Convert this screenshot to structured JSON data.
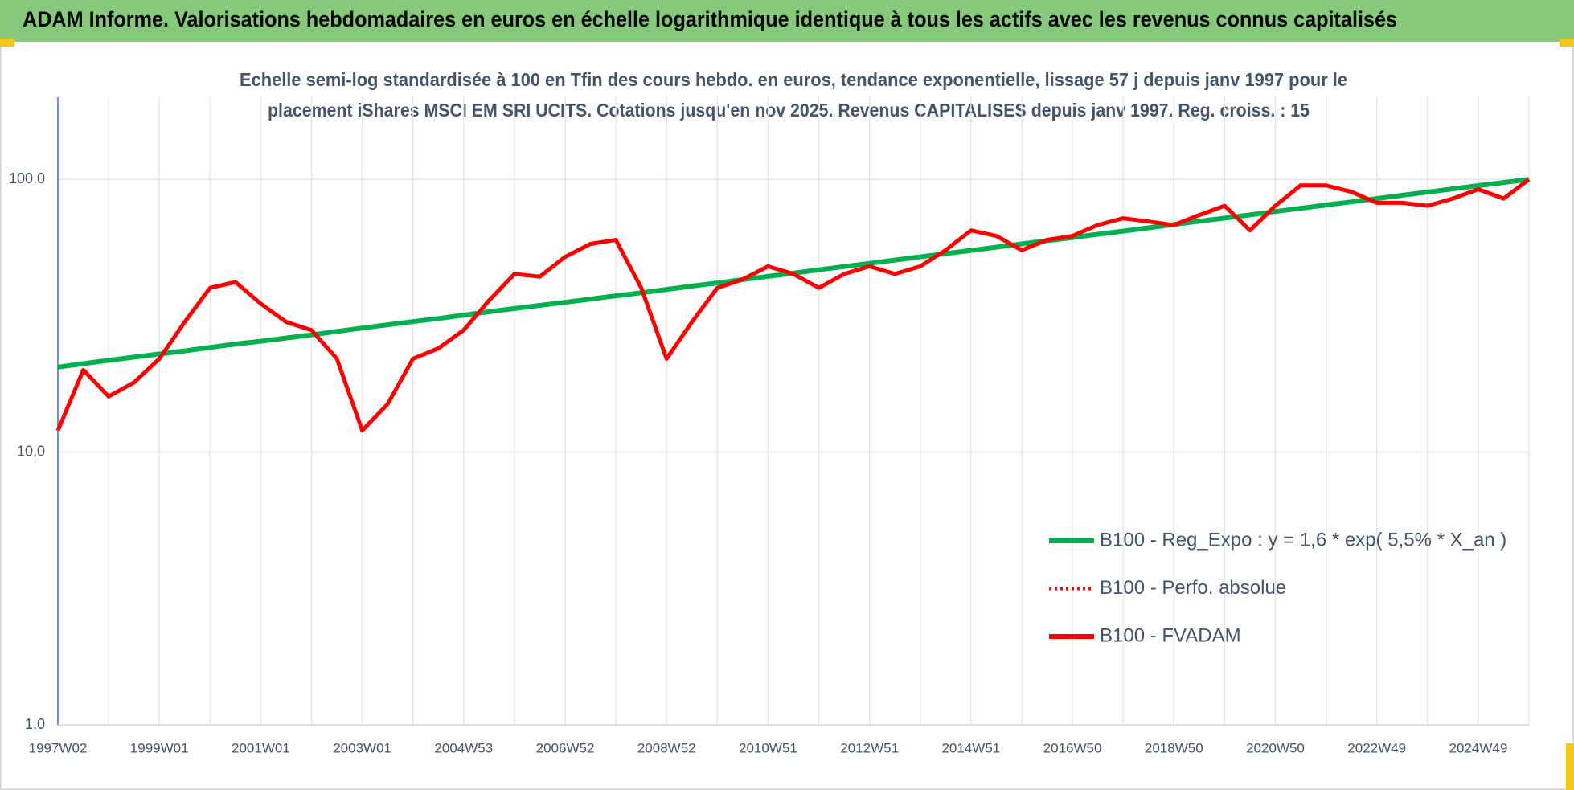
{
  "header": {
    "title": "ADAM Informe. Valorisations hebdomadaires en euros en échelle logarithmique identique à tous les actifs avec les revenus connus capitalisés"
  },
  "chart_data": {
    "type": "line",
    "title": [
      "Echelle semi-log standardisée à 100 en Tfin des cours hebdo. en euros, tendance exponentielle, lissage 57 j depuis janv 1997 pour le",
      "placement iShares MSCI EM SRI UCITS. Cotations jusqu'en nov 2025. Revenus CAPITALISES depuis janv 1997. Reg. croiss. : 15"
    ],
    "categories": [
      "1997W02",
      null,
      null,
      null,
      "1999W01",
      null,
      null,
      null,
      "2001W01",
      null,
      null,
      null,
      "2003W01",
      null,
      null,
      null,
      "2004W53",
      null,
      null,
      null,
      "2006W52",
      null,
      null,
      null,
      "2008W52",
      null,
      null,
      null,
      "2010W51",
      null,
      null,
      null,
      "2012W51",
      null,
      null,
      null,
      "2014W51",
      null,
      null,
      null,
      "2016W50",
      null,
      null,
      null,
      "2018W50",
      null,
      null,
      null,
      "2020W50",
      null,
      null,
      null,
      "2022W49",
      null,
      null,
      null,
      "2024W49",
      null,
      null
    ],
    "series": [
      {
        "name": "B100 - Reg_Expo : y = 1,6 * exp( 5,5% *  X_an )",
        "color": "#00b050",
        "dash": "solid",
        "values": [
          20.5,
          21.1,
          21.7,
          22.3,
          22.9,
          23.5,
          24.2,
          24.9,
          25.5,
          26.2,
          26.9,
          27.7,
          28.5,
          29.3,
          30.1,
          30.9,
          31.8,
          32.7,
          33.6,
          34.5,
          35.4,
          36.4,
          37.4,
          38.4,
          39.5,
          40.6,
          41.7,
          42.9,
          44.1,
          45.3,
          46.6,
          47.9,
          49.2,
          50.6,
          52.0,
          53.4,
          54.9,
          56.4,
          58.0,
          59.6,
          61.2,
          62.9,
          64.6,
          66.4,
          68.3,
          70.2,
          72.1,
          74.1,
          76.2,
          78.3,
          80.5,
          82.7,
          85.0,
          87.4,
          89.8,
          92.3,
          94.8,
          97.4,
          100
        ]
      },
      {
        "name": "B100 - Perfo. absolue",
        "color": "#ff0000",
        "dash": "dotted",
        "values": [
          12,
          20,
          16,
          18,
          22,
          30,
          40,
          42,
          35,
          30,
          28,
          22,
          12,
          15,
          22,
          24,
          28,
          36,
          45,
          44,
          52,
          58,
          60,
          40,
          22,
          30,
          40,
          43,
          48,
          45,
          40,
          45,
          48,
          45,
          48,
          55,
          65,
          62,
          55,
          60,
          62,
          68,
          72,
          70,
          68,
          74,
          80,
          65,
          80,
          95,
          95,
          90,
          82,
          82,
          80,
          85,
          92,
          85,
          100
        ]
      },
      {
        "name": "B100 - FVADAM",
        "color": "#ff0000",
        "dash": "solid",
        "values": [
          12,
          20,
          16,
          18,
          22,
          30,
          40,
          42,
          35,
          30,
          28,
          22,
          12,
          15,
          22,
          24,
          28,
          36,
          45,
          44,
          52,
          58,
          60,
          40,
          22,
          30,
          40,
          43,
          48,
          45,
          40,
          45,
          48,
          45,
          48,
          55,
          65,
          62,
          55,
          60,
          62,
          68,
          72,
          70,
          68,
          74,
          80,
          65,
          80,
          95,
          95,
          90,
          82,
          82,
          80,
          85,
          92,
          85,
          100
        ]
      }
    ],
    "ylim": [
      1,
      200
    ],
    "yscale": "log",
    "yticks": [
      {
        "value": 1,
        "label": "1,0"
      },
      {
        "value": 10,
        "label": "10,0"
      },
      {
        "value": 100,
        "label": "100,0"
      }
    ],
    "grid": true,
    "legend": "lower right"
  }
}
